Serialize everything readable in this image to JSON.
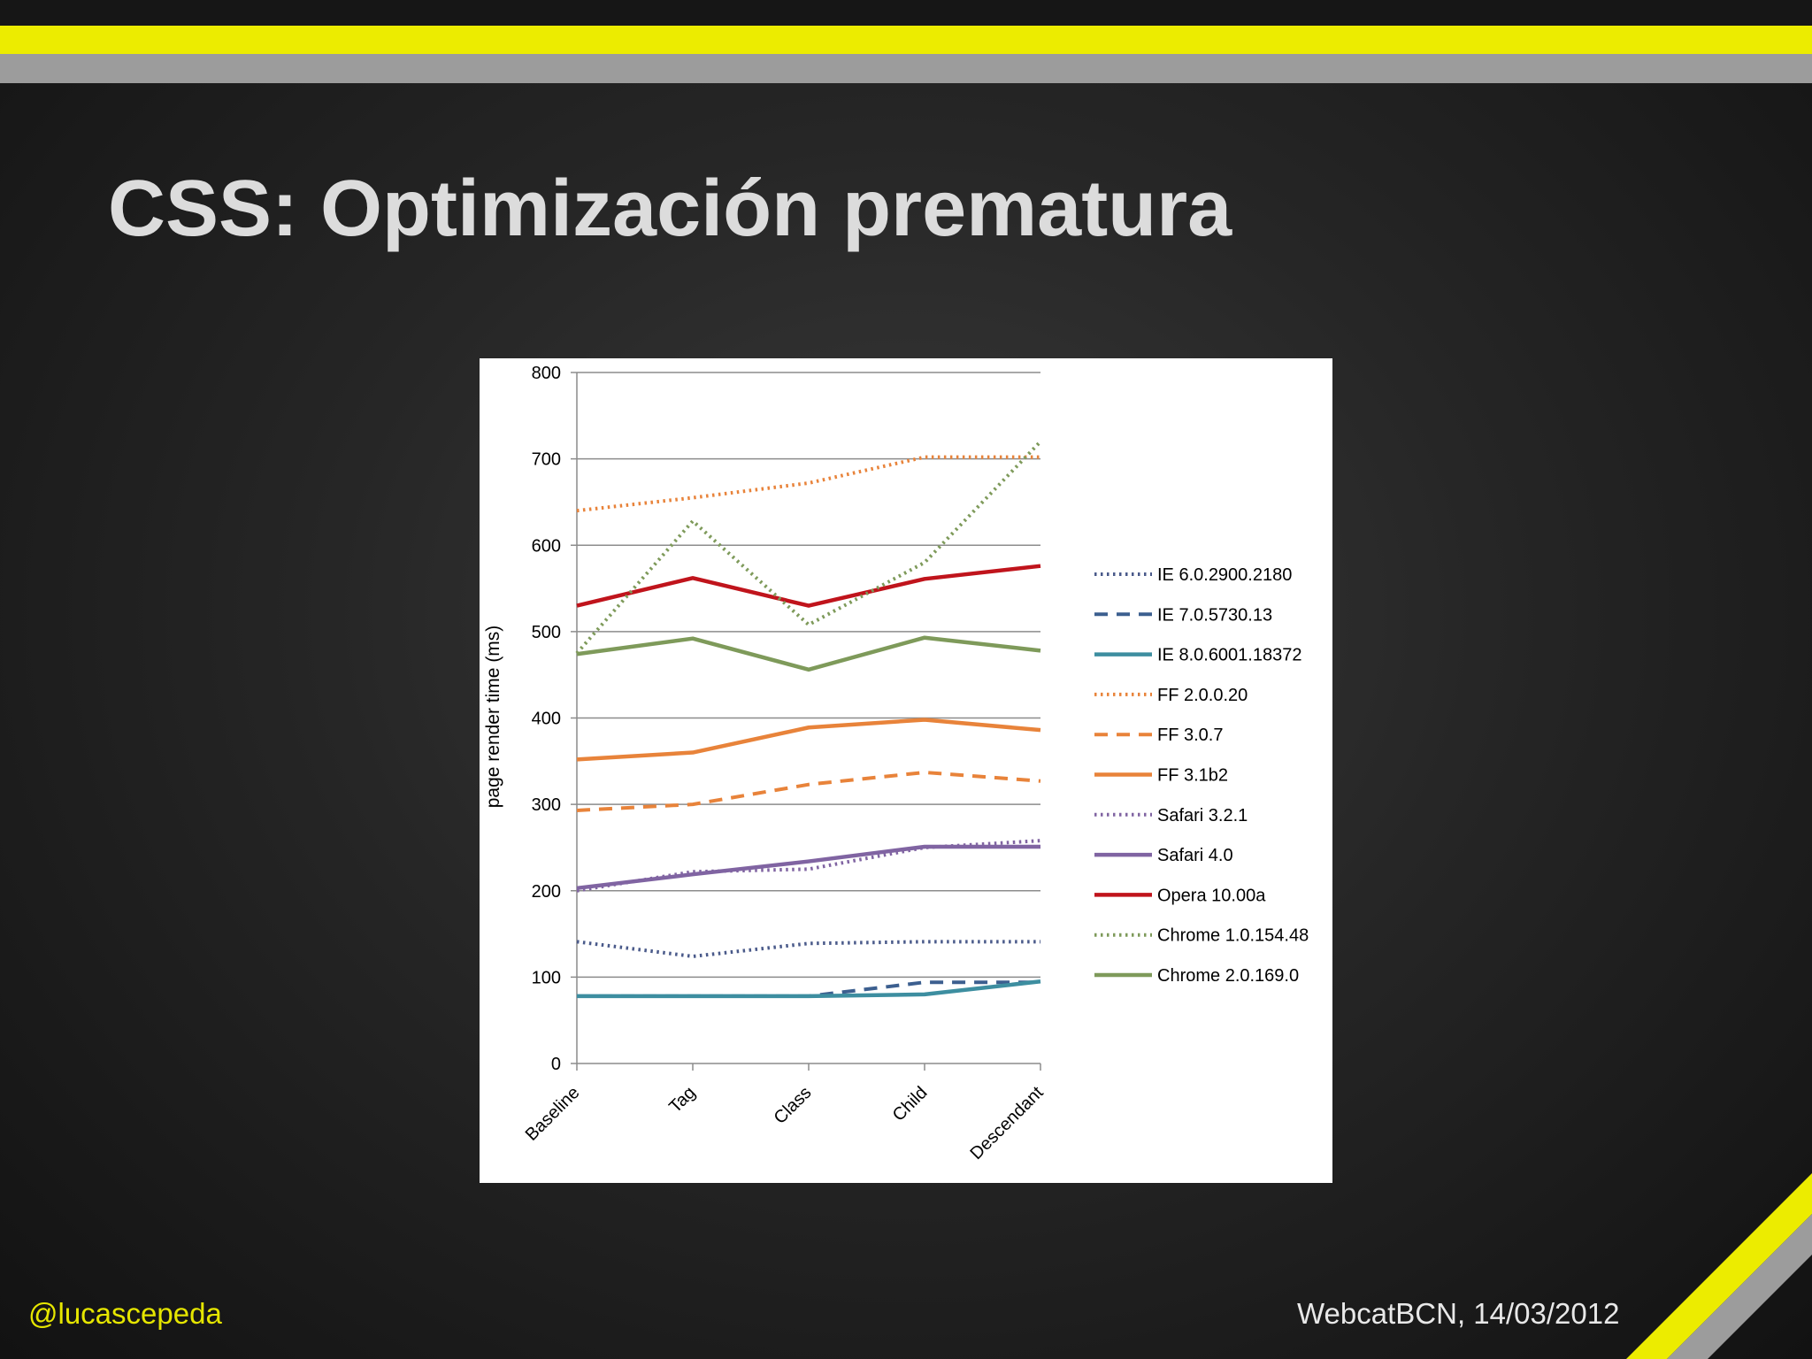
{
  "slide": {
    "title": "CSS: Optimización prematura",
    "footer_left": "@lucascepeda",
    "footer_right": "WebcatBCN, 14/03/2012",
    "colors": {
      "accent_yellow": "#ecec00",
      "band_gray": "#9c9c9c",
      "title": "#dcdcdc"
    }
  },
  "chart_data": {
    "type": "line",
    "title": "",
    "xlabel": "",
    "ylabel": "page render time (ms)",
    "categories": [
      "Baseline",
      "Tag",
      "Class",
      "Child",
      "Descendant"
    ],
    "ylim": [
      0,
      800
    ],
    "yticks": [
      "0",
      "100",
      "200",
      "300",
      "400",
      "500",
      "600",
      "700",
      "800"
    ],
    "grid": true,
    "legend_position": "right",
    "series": [
      {
        "name": "IE 6.0.2900.2180",
        "values": [
          141,
          124,
          139,
          141,
          141
        ],
        "color": "#4a5a8a",
        "style": "dotted"
      },
      {
        "name": "IE 7.0.5730.13",
        "values": [
          78,
          78,
          78,
          94,
          94
        ],
        "color": "#3c5f8f",
        "style": "dashed"
      },
      {
        "name": "IE 8.0.6001.18372",
        "values": [
          78,
          78,
          78,
          80,
          95
        ],
        "color": "#3d8ea0",
        "style": "solid"
      },
      {
        "name": "FF 2.0.0.20",
        "values": [
          640,
          655,
          672,
          702,
          702
        ],
        "color": "#e8833a",
        "style": "dotted"
      },
      {
        "name": "FF 3.0.7",
        "values": [
          293,
          300,
          323,
          337,
          327
        ],
        "color": "#e8833a",
        "style": "dashed"
      },
      {
        "name": "FF 3.1b2",
        "values": [
          352,
          360,
          389,
          398,
          386
        ],
        "color": "#e8833a",
        "style": "solid"
      },
      {
        "name": "Safari 3.2.1",
        "values": [
          200,
          222,
          225,
          250,
          258
        ],
        "color": "#8064a2",
        "style": "dotted"
      },
      {
        "name": "Safari 4.0",
        "values": [
          203,
          219,
          234,
          251,
          251
        ],
        "color": "#8064a2",
        "style": "solid"
      },
      {
        "name": "Opera 10.00a",
        "values": [
          530,
          562,
          530,
          561,
          576
        ],
        "color": "#c0141c",
        "style": "solid"
      },
      {
        "name": "Chrome 1.0.154.48",
        "values": [
          475,
          628,
          508,
          580,
          720
        ],
        "color": "#7e9a5a",
        "style": "dotted"
      },
      {
        "name": "Chrome 2.0.169.0",
        "values": [
          474,
          492,
          456,
          493,
          478
        ],
        "color": "#7e9a5a",
        "style": "solid"
      }
    ]
  }
}
